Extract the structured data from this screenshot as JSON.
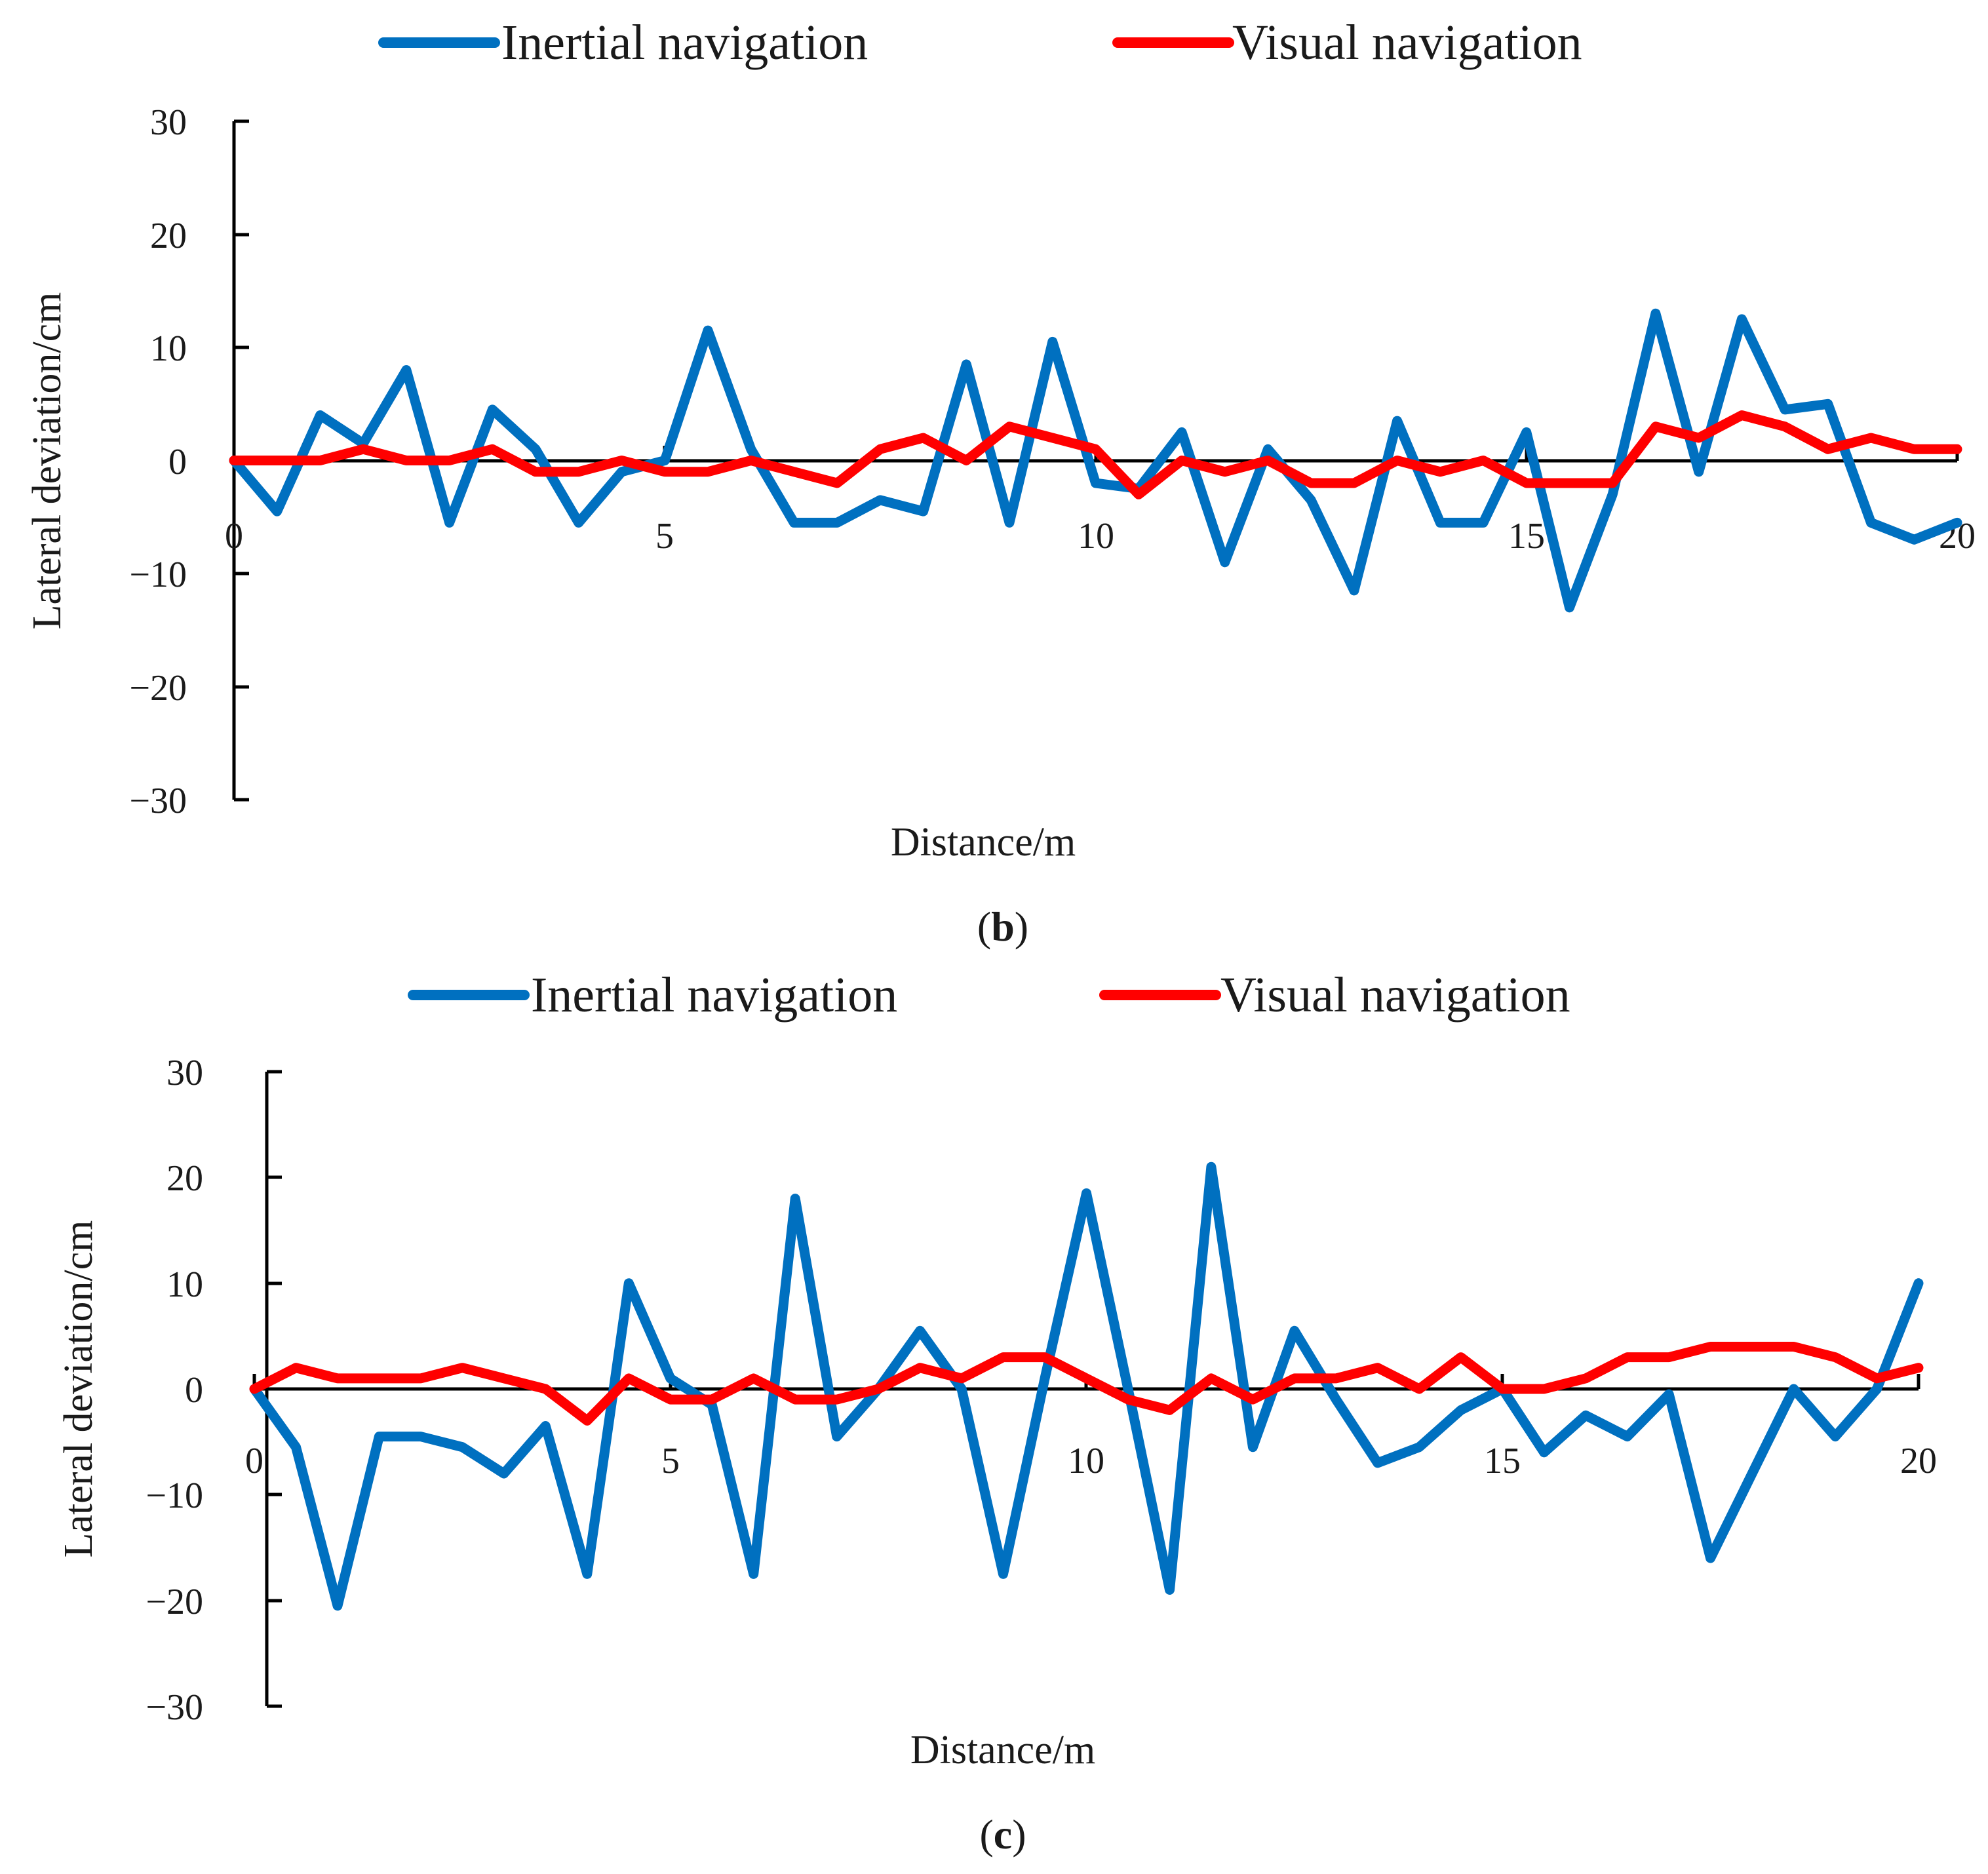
{
  "colors": {
    "inertial": "#0070c0",
    "visual": "#ff0000",
    "axis": "#000000"
  },
  "chart_data": [
    {
      "type": "line",
      "caption_letter": "b",
      "xlabel": "Distance/m",
      "ylabel": "Lateral deviation/cm",
      "xlim": [
        0,
        20
      ],
      "ylim": [
        -30,
        30
      ],
      "x_ticks": [
        "0",
        "5",
        "10",
        "15",
        "20"
      ],
      "y_ticks": [
        "30",
        "20",
        "10",
        "0",
        "−10",
        "−20",
        "−30"
      ],
      "legend": [
        "Inertial navigation",
        "Visual navigation"
      ],
      "x": [
        0,
        0.5,
        1,
        1.5,
        2,
        2.5,
        3,
        3.5,
        4,
        4.5,
        5,
        5.5,
        6,
        6.5,
        7,
        7.5,
        8,
        8.5,
        9,
        9.5,
        10,
        10.5,
        11,
        11.5,
        12,
        12.5,
        13,
        13.5,
        14,
        14.5,
        15,
        15.5,
        16,
        16.5,
        17,
        17.5,
        18,
        18.5,
        19,
        19.5,
        20
      ],
      "series": [
        {
          "name": "Inertial navigation",
          "values": [
            0,
            -4.5,
            4,
            1.5,
            8,
            -5.5,
            4.5,
            1,
            -5.5,
            -1,
            0,
            11.5,
            1,
            -5.5,
            -5.5,
            -3.5,
            -4.5,
            8.5,
            -5.5,
            10.5,
            -2,
            -2.5,
            2.5,
            -9,
            1,
            -3.5,
            -11.5,
            3.5,
            -5.5,
            -5.5,
            2.5,
            -13,
            -3,
            13,
            -1,
            12.5,
            4.5,
            5,
            -5.5,
            -7,
            -5.5
          ]
        },
        {
          "name": "Visual navigation",
          "values": [
            0,
            0,
            0,
            1,
            0,
            0,
            1,
            -1,
            -1,
            0,
            -1,
            -1,
            0,
            -1,
            -2,
            1,
            2,
            0,
            3,
            2,
            1,
            -3,
            0,
            -1,
            0,
            -2,
            -2,
            0,
            -1,
            0,
            -2,
            -2,
            -2,
            3,
            2,
            4,
            3,
            1,
            2,
            1,
            1
          ]
        }
      ]
    },
    {
      "type": "line",
      "caption_letter": "c",
      "xlabel": "Distance/m",
      "ylabel": "Lateral deviation/cm",
      "xlim": [
        0,
        20
      ],
      "ylim": [
        -30,
        30
      ],
      "x_ticks": [
        "0",
        "5",
        "10",
        "15",
        "20"
      ],
      "y_ticks": [
        "30",
        "20",
        "10",
        "0",
        "−10",
        "−20",
        "−30"
      ],
      "legend": [
        "Inertial navigation",
        "Visual navigation"
      ],
      "x": [
        0,
        0.5,
        1,
        1.5,
        2,
        2.5,
        3,
        3.5,
        4,
        4.5,
        5,
        5.5,
        6,
        6.5,
        7,
        7.5,
        8,
        8.5,
        9,
        9.5,
        10,
        10.5,
        11,
        11.5,
        12,
        12.5,
        13,
        13.5,
        14,
        14.5,
        15,
        15.5,
        16,
        16.5,
        17,
        17.5,
        18,
        18.5,
        19,
        19.5,
        20
      ],
      "series": [
        {
          "name": "Inertial navigation",
          "values": [
            0,
            -5.5,
            -20.5,
            -4.5,
            -4.5,
            -5.5,
            -8,
            -3.5,
            -17.5,
            10,
            1,
            -1.5,
            -17.5,
            18,
            -4.5,
            0,
            5.5,
            0,
            -17.5,
            1,
            18.5,
            0,
            -19,
            21,
            -5.5,
            5.5,
            -1,
            -7,
            -5.5,
            -2,
            0,
            -6,
            -2.5,
            -4.5,
            -0.5,
            -16,
            -8,
            0,
            -4.5,
            0,
            10
          ]
        },
        {
          "name": "Visual navigation",
          "values": [
            0,
            2,
            1,
            1,
            1,
            2,
            1,
            0,
            -3,
            1,
            -1,
            -1,
            1,
            -1,
            -1,
            0,
            2,
            1,
            3,
            3,
            1,
            -1,
            -2,
            1,
            -1,
            1,
            1,
            2,
            0,
            3,
            0,
            0,
            1,
            3,
            3,
            4,
            4,
            4,
            3,
            1,
            2
          ]
        }
      ]
    }
  ]
}
